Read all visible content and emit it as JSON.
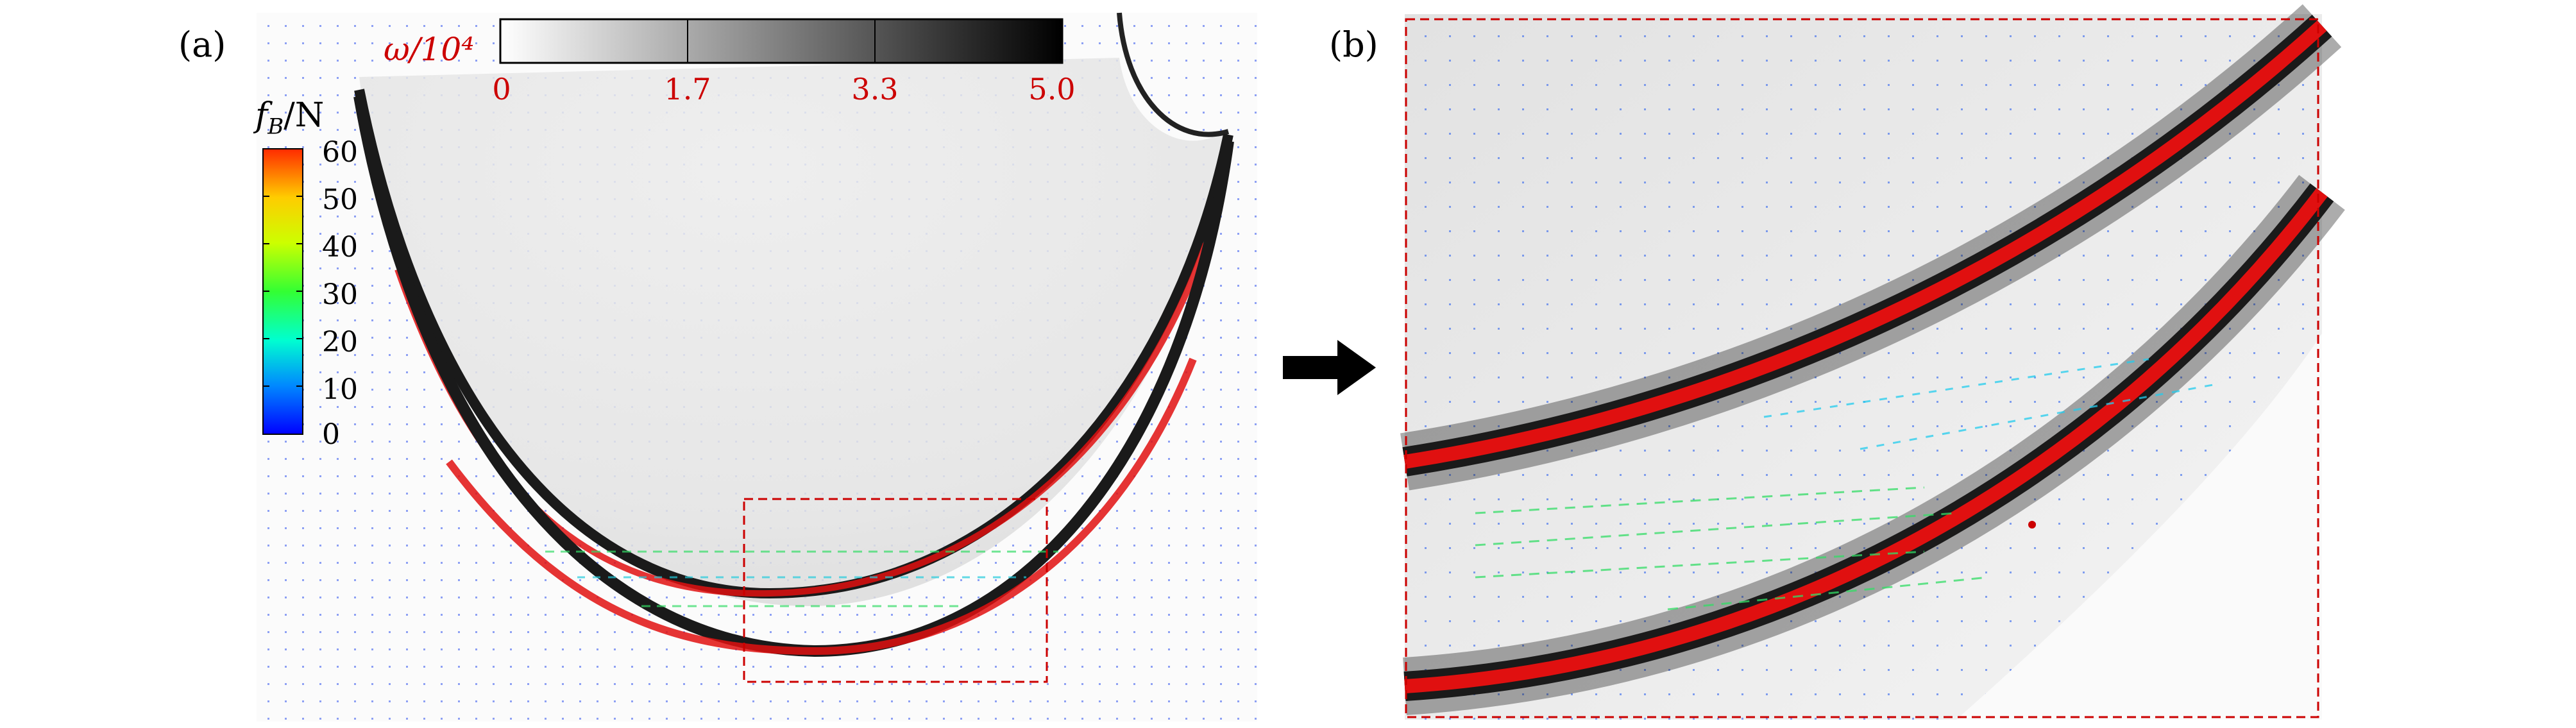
{
  "panels": {
    "a_label": "(a)",
    "b_label": "(b)"
  },
  "omega_colorbar": {
    "label": "ω/10⁴",
    "ticks": [
      "0",
      "1.7",
      "3.3",
      "5.0"
    ],
    "colors": {
      "start": "#ffffff",
      "end": "#000000",
      "tick_text": "#cc0000"
    }
  },
  "force_colorbar": {
    "label_symbol": "f",
    "label_subscript": "B",
    "label_unit": "/N",
    "ticks": [
      "60",
      "50",
      "40",
      "30",
      "20",
      "10",
      "0"
    ],
    "colors": [
      "#0000ff",
      "#00bfff",
      "#00ffd0",
      "#33ff33",
      "#ccff00",
      "#ffcc00",
      "#ff3300"
    ]
  },
  "arrow_icon": "right-arrow-icon",
  "zoom_box_color": "#cc0000"
}
